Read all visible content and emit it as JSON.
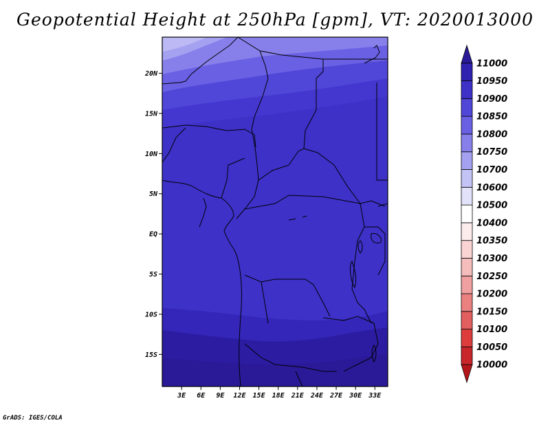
{
  "title": "Geopotential Height at 250hPa [gpm], VT: 2020013000",
  "credit": "GrADS: IGES/COLA",
  "map": {
    "lat_labels": [
      "20N",
      "15N",
      "10N",
      "5N",
      "EQ",
      "5S",
      "10S",
      "15S"
    ],
    "lon_labels": [
      "3E",
      "6E",
      "9E",
      "12E",
      "15E",
      "18E",
      "21E",
      "24E",
      "27E",
      "30E",
      "33E"
    ]
  },
  "colorbar": {
    "levels": [
      "10000",
      "10050",
      "10100",
      "10150",
      "10200",
      "10250",
      "10300",
      "10350",
      "10400",
      "10500",
      "10600",
      "10700",
      "10750",
      "10800",
      "10850",
      "10900",
      "10950",
      "11000"
    ],
    "colors": [
      "#b4161c",
      "#c8262a",
      "#dc3c3c",
      "#e35f5f",
      "#ea8080",
      "#f0a0a0",
      "#f5bcbc",
      "#fad3d3",
      "#fdecec",
      "#ffffff",
      "#e2e2fb",
      "#c3c3f6",
      "#a4a2f0",
      "#8780eb",
      "#6a60e4",
      "#5046d8",
      "#3d31c8",
      "#3022b0",
      "#2a1a98"
    ]
  },
  "chart_data": {
    "type": "heatmap",
    "title": "Geopotential Height at 250hPa [gpm], VT: 2020013000",
    "variable": "Geopotential Height",
    "level": "250hPa",
    "units": "gpm",
    "valid_time": "2020013000",
    "lon_range": [
      0,
      35
    ],
    "lat_range": [
      -19,
      24.5
    ],
    "contour_levels": [
      10000,
      10050,
      10100,
      10150,
      10200,
      10250,
      10300,
      10350,
      10400,
      10500,
      10600,
      10700,
      10750,
      10800,
      10850,
      10900,
      10950,
      11000
    ],
    "field_bands": [
      {
        "from_lat": 22.5,
        "to_lat": 24.5,
        "value": 10700
      },
      {
        "from_lat": 20.5,
        "to_lat": 22.5,
        "value": 10750
      },
      {
        "from_lat": 18.5,
        "to_lat": 20.5,
        "value": 10800
      },
      {
        "from_lat": 16.5,
        "to_lat": 18.5,
        "value": 10850
      },
      {
        "from_lat": 14.5,
        "to_lat": 16.5,
        "value": 10900
      },
      {
        "from_lat": -9.5,
        "to_lat": 14.5,
        "value": 10950
      },
      {
        "from_lat": -13.5,
        "to_lat": -9.5,
        "value": 10950
      },
      {
        "from_lat": -19,
        "to_lat": -13.5,
        "value": 11000
      }
    ]
  }
}
